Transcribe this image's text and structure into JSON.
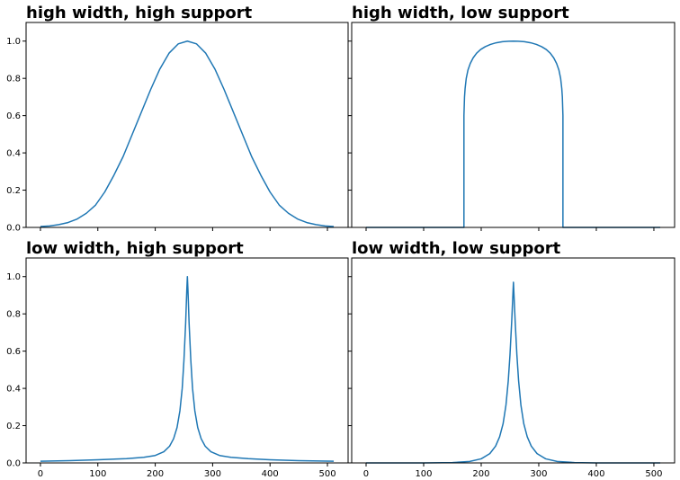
{
  "chart_data": [
    {
      "type": "line",
      "title": "high width, high support",
      "xlim": [
        -25,
        536
      ],
      "ylim": [
        0,
        1.1
      ],
      "xticks": [
        0,
        100,
        200,
        300,
        400,
        500
      ],
      "yticks": [
        0.0,
        0.2,
        0.4,
        0.6,
        0.8,
        1.0
      ],
      "xtick_labels": [],
      "ytick_labels": [
        "0.0",
        "0.2",
        "0.4",
        "0.6",
        "0.8",
        "1.0"
      ],
      "series": [
        {
          "color": "#1f77b4",
          "x": [
            0,
            16,
            32,
            48,
            64,
            80,
            96,
            112,
            128,
            144,
            160,
            176,
            192,
            208,
            224,
            240,
            256,
            272,
            288,
            304,
            320,
            336,
            352,
            368,
            384,
            400,
            416,
            432,
            448,
            464,
            480,
            496,
            511
          ],
          "y": [
            0.005,
            0.008,
            0.015,
            0.026,
            0.045,
            0.076,
            0.12,
            0.19,
            0.28,
            0.38,
            0.5,
            0.62,
            0.74,
            0.85,
            0.935,
            0.985,
            1.0,
            0.985,
            0.935,
            0.85,
            0.74,
            0.62,
            0.5,
            0.38,
            0.28,
            0.19,
            0.12,
            0.076,
            0.045,
            0.026,
            0.015,
            0.008,
            0.005
          ]
        }
      ]
    },
    {
      "type": "line",
      "title": "high width, low support",
      "xlim": [
        -25,
        536
      ],
      "ylim": [
        0,
        1.1
      ],
      "xticks": [
        0,
        100,
        200,
        300,
        400,
        500
      ],
      "yticks": [
        0.0,
        0.2,
        0.4,
        0.6,
        0.8,
        1.0
      ],
      "xtick_labels": [],
      "ytick_labels": [],
      "series": [
        {
          "color": "#1f77b4",
          "x": [
            0,
            170,
            170,
            171,
            172,
            174,
            177,
            181,
            186,
            192,
            199,
            207,
            216,
            226,
            237,
            248,
            256,
            264,
            275,
            286,
            296,
            305,
            313,
            320,
            326,
            331,
            335,
            338,
            340,
            341,
            342,
            342,
            511
          ],
          "y": [
            0,
            0,
            0.6,
            0.7,
            0.745,
            0.8,
            0.845,
            0.88,
            0.91,
            0.935,
            0.955,
            0.97,
            0.982,
            0.991,
            0.997,
            0.999,
            1.0,
            0.999,
            0.997,
            0.991,
            0.982,
            0.97,
            0.955,
            0.935,
            0.91,
            0.88,
            0.845,
            0.8,
            0.745,
            0.7,
            0.6,
            0,
            0
          ]
        }
      ]
    },
    {
      "type": "line",
      "title": "low width, high support",
      "xlim": [
        -25,
        536
      ],
      "ylim": [
        0,
        1.1
      ],
      "xticks": [
        0,
        100,
        200,
        300,
        400,
        500
      ],
      "yticks": [
        0.0,
        0.2,
        0.4,
        0.6,
        0.8,
        1.0
      ],
      "xtick_labels": [
        "0",
        "100",
        "200",
        "300",
        "400",
        "500"
      ],
      "ytick_labels": [
        "0.0",
        "0.2",
        "0.4",
        "0.6",
        "0.8",
        "1.0"
      ],
      "series": [
        {
          "color": "#1f77b4",
          "x": [
            0,
            50,
            100,
            150,
            180,
            200,
            215,
            225,
            232,
            238,
            243,
            247,
            250,
            253,
            255,
            256,
            257,
            259,
            262,
            265,
            269,
            274,
            280,
            287,
            297,
            312,
            332,
            362,
            400,
            450,
            511
          ],
          "y": [
            0.009,
            0.012,
            0.017,
            0.023,
            0.03,
            0.04,
            0.06,
            0.09,
            0.13,
            0.19,
            0.28,
            0.4,
            0.55,
            0.75,
            0.93,
            1.0,
            0.93,
            0.75,
            0.55,
            0.4,
            0.28,
            0.19,
            0.13,
            0.09,
            0.06,
            0.04,
            0.03,
            0.023,
            0.017,
            0.012,
            0.009
          ]
        }
      ]
    },
    {
      "type": "line",
      "title": "low width, low support",
      "xlim": [
        -25,
        536
      ],
      "ylim": [
        0,
        1.1
      ],
      "xticks": [
        0,
        100,
        200,
        300,
        400,
        500
      ],
      "yticks": [
        0.0,
        0.2,
        0.4,
        0.6,
        0.8,
        1.0
      ],
      "xtick_labels": [
        "0",
        "100",
        "200",
        "300",
        "400",
        "500"
      ],
      "ytick_labels": [],
      "series": [
        {
          "color": "#1f77b4",
          "x": [
            0,
            100,
            150,
            180,
            200,
            215,
            225,
            232,
            238,
            243,
            247,
            250,
            253,
            255,
            256,
            257,
            259,
            262,
            265,
            269,
            274,
            280,
            287,
            297,
            312,
            332,
            362,
            400,
            511
          ],
          "y": [
            0.0,
            0.0,
            0.002,
            0.008,
            0.022,
            0.05,
            0.09,
            0.14,
            0.21,
            0.31,
            0.44,
            0.58,
            0.76,
            0.9,
            0.97,
            0.9,
            0.76,
            0.58,
            0.44,
            0.31,
            0.21,
            0.14,
            0.09,
            0.05,
            0.022,
            0.008,
            0.002,
            0.0,
            0.0
          ]
        }
      ]
    }
  ]
}
